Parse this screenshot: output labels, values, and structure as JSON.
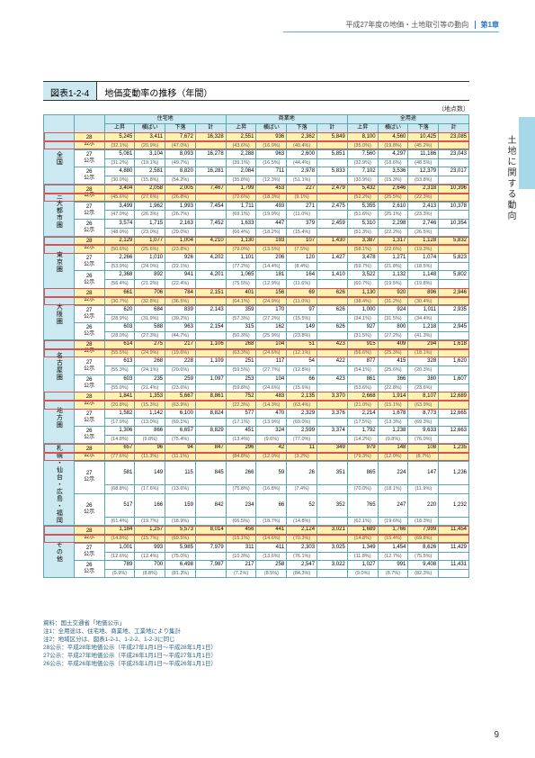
{
  "page": {
    "header_text": "平成27年度の地価・土地取引等の動向",
    "chapter_label": "第1章",
    "side_text": "土地に関する動向",
    "page_number": "9"
  },
  "figure": {
    "label": "図表1-2-4",
    "title": "地価変動率の推移（年間）",
    "unit": "（地点数）",
    "col_groups": [
      "住宅地",
      "商業地",
      "全用途"
    ],
    "sub_cols": [
      "上昇",
      "横ばい",
      "下落",
      "計"
    ],
    "year_rows": [
      "28\n公示",
      "27\n公示",
      "26\n公示"
    ],
    "regions": [
      "全国",
      "三大都市圏",
      "東京圏",
      "大阪圏",
      "名古屋圏",
      "地方圏",
      "札幌・仙台・広島・福岡",
      "その他"
    ],
    "data": [
      {
        "hl": [
          0
        ],
        "rows": [
          {
            "v": [
              "5,245",
              "3,411",
              "7,672",
              "16,328",
              "2,551",
              "936",
              "2,362",
              "5,849",
              "8,100",
              "4,560",
              "10,425",
              "23,085"
            ],
            "p": [
              "(32.1%)",
              "(20.9%)",
              "(47.0%)",
              "",
              "(43.6%)",
              "(16.0%)",
              "(40.4%)",
              "",
              "(35.0%)",
              "(19.8%)",
              "(45.2%)",
              ""
            ]
          },
          {
            "v": [
              "5,081",
              "3,104",
              "8,093",
              "16,278",
              "2,288",
              "963",
              "2,600",
              "5,851",
              "7,560",
              "4,297",
              "11,186",
              "23,043"
            ],
            "p": [
              "(31.2%)",
              "(19.1%)",
              "(49.7%)",
              "",
              "(39.1%)",
              "(16.5%)",
              "(44.4%)",
              "",
              "(32.9%)",
              "(18.6%)",
              "(48.5%)",
              ""
            ]
          },
          {
            "v": [
              "4,880",
              "2,581",
              "8,820",
              "16,281",
              "2,084",
              "711",
              "2,978",
              "5,833",
              "7,102",
              "3,536",
              "12,379",
              "23,017"
            ],
            "p": [
              "(30.0%)",
              "(15.8%)",
              "(54.2%)",
              "",
              "(35.8%)",
              "(12.3%)",
              "(51.1%)",
              "",
              "(30.9%)",
              "(15.3%)",
              "(53.8%)",
              ""
            ]
          }
        ]
      },
      {
        "hl": [
          0
        ],
        "rows": [
          {
            "v": [
              "3,404",
              "2,058",
              "2,005",
              "7,467",
              "1,799",
              "453",
              "227",
              "2,479",
              "5,432",
              "2,646",
              "2,318",
              "10,396"
            ],
            "p": [
              "(45.6%)",
              "(27.6%)",
              "(26.8%)",
              "",
              "(72.6%)",
              "(18.3%)",
              "(9.1%)",
              "",
              "(52.2%)",
              "(25.5%)",
              "(22.3%)",
              ""
            ]
          },
          {
            "v": [
              "3,499",
              "1,962",
              "1,993",
              "7,454",
              "1,711",
              "493",
              "271",
              "2,475",
              "5,355",
              "2,610",
              "2,413",
              "10,378"
            ],
            "p": [
              "(47.0%)",
              "(26.3%)",
              "(26.7%)",
              "",
              "(69.1%)",
              "(19.9%)",
              "(11.0%)",
              "",
              "(51.6%)",
              "(25.1%)",
              "(23.3%)",
              ""
            ]
          },
          {
            "v": [
              "3,574",
              "1,715",
              "2,163",
              "7,452",
              "1,633",
              "447",
              "379",
              "2,459",
              "5,310",
              "2,298",
              "2,746",
              "10,354"
            ],
            "p": [
              "(48.0%)",
              "(23.0%)",
              "(29.0%)",
              "",
              "(66.4%)",
              "(18.2%)",
              "(15.4%)",
              "",
              "(51.3%)",
              "(22.2%)",
              "(26.5%)",
              ""
            ]
          }
        ]
      },
      {
        "hl": [
          0
        ],
        "rows": [
          {
            "v": [
              "2,129",
              "1,077",
              "1,004",
              "4,210",
              "1,130",
              "193",
              "107",
              "1,430",
              "3,387",
              "1,317",
              "1,128",
              "5,832"
            ],
            "p": [
              "(50.6%)",
              "(25.6%)",
              "(23.8%)",
              "",
              "(79.0%)",
              "(13.5%)",
              "(7.5%)",
              "",
              "(58.1%)",
              "(22.6%)",
              "(19.3%)",
              ""
            ]
          },
          {
            "v": [
              "2,266",
              "1,010",
              "926",
              "4,202",
              "1,101",
              "206",
              "120",
              "1,427",
              "3,478",
              "1,271",
              "1,074",
              "5,823"
            ],
            "p": [
              "(53.9%)",
              "(24.0%)",
              "(22.1%)",
              "",
              "(77.2%)",
              "(14.4%)",
              "(8.4%)",
              "",
              "(59.7%)",
              "(21.8%)",
              "(18.5%)",
              ""
            ]
          },
          {
            "v": [
              "2,368",
              "892",
              "941",
              "4,201",
              "1,065",
              "181",
              "164",
              "1,410",
              "3,522",
              "1,132",
              "1,148",
              "5,802"
            ],
            "p": [
              "(56.4%)",
              "(21.2%)",
              "(22.4%)",
              "",
              "(75.5%)",
              "(12.9%)",
              "(11.6%)",
              "",
              "(60.7%)",
              "(19.5%)",
              "(19.8%)",
              ""
            ]
          }
        ]
      },
      {
        "hl": [
          0
        ],
        "rows": [
          {
            "v": [
              "661",
              "706",
              "784",
              "2,151",
              "401",
              "156",
              "69",
              "626",
              "1,130",
              "920",
              "896",
              "2,946"
            ],
            "p": [
              "(30.7%)",
              "(32.8%)",
              "(36.5%)",
              "",
              "(64.1%)",
              "(24.9%)",
              "(11.0%)",
              "",
              "(38.4%)",
              "(31.2%)",
              "(30.4%)",
              ""
            ]
          },
          {
            "v": [
              "620",
              "684",
              "839",
              "2,143",
              "359",
              "170",
              "97",
              "626",
              "1,000",
              "924",
              "1,011",
              "2,935"
            ],
            "p": [
              "(28.9%)",
              "(31.9%)",
              "(39.2%)",
              "",
              "(57.3%)",
              "(27.2%)",
              "(15.5%)",
              "",
              "(34.1%)",
              "(31.5%)",
              "(34.4%)",
              ""
            ]
          },
          {
            "v": [
              "603",
              "588",
              "963",
              "2,154",
              "315",
              "162",
              "149",
              "626",
              "927",
              "800",
              "1,218",
              "2,945"
            ],
            "p": [
              "(28.0%)",
              "(27.3%)",
              "(44.7%)",
              "",
              "(50.3%)",
              "(25.9%)",
              "(23.8%)",
              "",
              "(31.5%)",
              "(27.2%)",
              "(41.3%)",
              ""
            ]
          }
        ]
      },
      {
        "hl": [
          0
        ],
        "rows": [
          {
            "v": [
              "614",
              "275",
              "217",
              "1,106",
              "268",
              "104",
              "51",
              "423",
              "915",
              "409",
              "294",
              "1,618"
            ],
            "p": [
              "(55.5%)",
              "(24.9%)",
              "(19.6%)",
              "",
              "(63.3%)",
              "(24.6%)",
              "(12.1%)",
              "",
              "(56.6%)",
              "(25.3%)",
              "(18.1%)",
              ""
            ]
          },
          {
            "v": [
              "613",
              "268",
              "228",
              "1,109",
              "251",
              "117",
              "54",
              "422",
              "877",
              "415",
              "328",
              "1,620"
            ],
            "p": [
              "(55.3%)",
              "(24.1%)",
              "(20.6%)",
              "",
              "(59.5%)",
              "(27.7%)",
              "(12.8%)",
              "",
              "(54.1%)",
              "(25.6%)",
              "(20.3%)",
              ""
            ]
          },
          {
            "v": [
              "603",
              "235",
              "259",
              "1,097",
              "253",
              "104",
              "66",
              "423",
              "861",
              "366",
              "380",
              "1,607"
            ],
            "p": [
              "(55.0%)",
              "(21.4%)",
              "(23.6%)",
              "",
              "(59.8%)",
              "(24.6%)",
              "(15.6%)",
              "",
              "(53.6%)",
              "(22.8%)",
              "(23.6%)",
              ""
            ]
          }
        ]
      },
      {
        "hl": [
          0
        ],
        "rows": [
          {
            "v": [
              "1,841",
              "1,353",
              "5,667",
              "8,861",
              "752",
              "483",
              "2,135",
              "3,370",
              "2,668",
              "1,914",
              "8,107",
              "12,689"
            ],
            "p": [
              "(20.8%)",
              "(15.3%)",
              "(63.9%)",
              "",
              "(22.3%)",
              "(14.3%)",
              "(63.4%)",
              "",
              "(21.0%)",
              "(15.1%)",
              "(63.9%)",
              ""
            ]
          },
          {
            "v": [
              "1,582",
              "1,142",
              "6,100",
              "8,824",
              "577",
              "470",
              "2,329",
              "3,376",
              "2,214",
              "1,678",
              "8,773",
              "12,665"
            ],
            "p": [
              "(17.9%)",
              "(13.0%)",
              "(69.1%)",
              "",
              "(17.1%)",
              "(13.9%)",
              "(69.0%)",
              "",
              "(17.5%)",
              "(13.3%)",
              "(69.3%)",
              ""
            ]
          },
          {
            "v": [
              "1,306",
              "866",
              "6,657",
              "8,829",
              "451",
              "324",
              "2,599",
              "3,374",
              "1,792",
              "1,238",
              "9,633",
              "12,663"
            ],
            "p": [
              "(14.8%)",
              "(9.8%)",
              "(75.4%)",
              "",
              "(13.4%)",
              "(9.6%)",
              "(77.0%)",
              "",
              "(14.2%)",
              "(9.8%)",
              "(76.0%)",
              ""
            ]
          }
        ]
      },
      {
        "hl": [
          0
        ],
        "rows": [
          {
            "v": [
              "657",
              "96",
              "94",
              "847",
              "296",
              "42",
              "11",
              "349",
              "979",
              "148",
              "108",
              "1,235"
            ],
            "p": [
              "(77.6%)",
              "(11.3%)",
              "(11.1%)",
              "",
              "(84.8%)",
              "(12.0%)",
              "(3.2%)",
              "",
              "(79.3%)",
              "(12.0%)",
              "(8.7%)",
              ""
            ]
          },
          {
            "v": [
              "581",
              "149",
              "115",
              "845",
              "266",
              "59",
              "26",
              "351",
              "865",
              "224",
              "147",
              "1,236"
            ],
            "p": [
              "(68.8%)",
              "(17.6%)",
              "(13.6%)",
              "",
              "(75.8%)",
              "(16.8%)",
              "(7.4%)",
              "",
              "(70.0%)",
              "(18.1%)",
              "(11.9%)",
              ""
            ]
          },
          {
            "v": [
              "517",
              "166",
              "159",
              "842",
              "234",
              "66",
              "52",
              "352",
              "765",
              "247",
              "220",
              "1,232"
            ],
            "p": [
              "(61.4%)",
              "(19.7%)",
              "(18.9%)",
              "",
              "(66.5%)",
              "(18.7%)",
              "(14.8%)",
              "",
              "(62.1%)",
              "(19.6%)",
              "(18.3%)",
              ""
            ]
          }
        ]
      },
      {
        "hl": [
          0
        ],
        "rows": [
          {
            "v": [
              "1,184",
              "1,257",
              "5,573",
              "8,014",
              "456",
              "441",
              "2,124",
              "3,021",
              "1,689",
              "1,766",
              "7,999",
              "11,454"
            ],
            "p": [
              "(14.8%)",
              "(15.7%)",
              "(69.5%)",
              "",
              "(15.1%)",
              "(14.6%)",
              "(70.3%)",
              "",
              "(14.8%)",
              "(15.4%)",
              "(69.8%)",
              ""
            ]
          },
          {
            "v": [
              "1,001",
              "993",
              "5,985",
              "7,979",
              "311",
              "411",
              "2,303",
              "3,025",
              "1,349",
              "1,454",
              "8,626",
              "11,429"
            ],
            "p": [
              "(12.6%)",
              "(12.4%)",
              "(75.0%)",
              "",
              "(10.3%)",
              "(13.6%)",
              "(76.1%)",
              "",
              "(11.8%)",
              "(12.7%)",
              "(75.5%)",
              ""
            ]
          },
          {
            "v": [
              "789",
              "700",
              "6,498",
              "7,987",
              "217",
              "258",
              "2,547",
              "3,022",
              "1,027",
              "991",
              "9,408",
              "11,431"
            ],
            "p": [
              "(9.9%)",
              "(8.8%)",
              "(81.3%)",
              "",
              "(7.2%)",
              "(8.5%)",
              "(84.3%)",
              "",
              "(9.0%)",
              "(8.7%)",
              "(82.3%)",
              ""
            ]
          }
        ]
      }
    ]
  },
  "notes": [
    "資料：国土交通省「地価公示」",
    "注1：全用途は、住宅地、商業地、工業地により集計",
    "注2：地域区分は、図表1-2-1、1-2-2、1-2-3に同じ",
    "28公示：平成28年地価公示（平成27年1月1日～平成28年1月1日）",
    "27公示：平成27年地価公示（平成26年1月1日～平成27年1月1日）",
    "26公示：平成26年地価公示（平成25年1月1日～平成26年1月1日）"
  ]
}
